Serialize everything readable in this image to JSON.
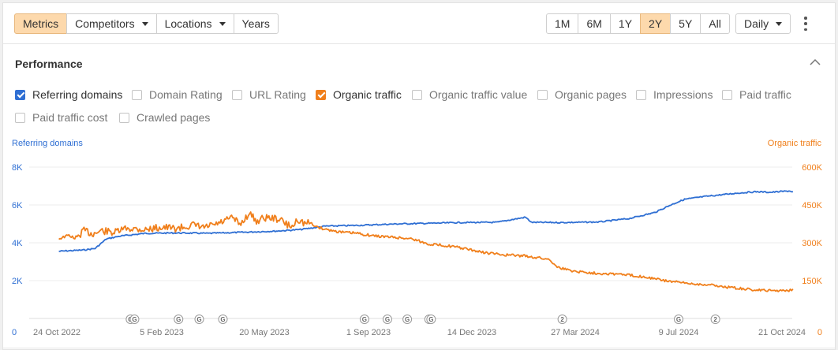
{
  "toolbar": {
    "metrics": "Metrics",
    "competitors": "Competitors",
    "locations": "Locations",
    "years": "Years",
    "ranges": [
      "1M",
      "6M",
      "1Y",
      "2Y",
      "5Y",
      "All"
    ],
    "active_range": "2Y",
    "granularity": "Daily"
  },
  "panel": {
    "title": "Performance",
    "checkboxes": [
      {
        "label": "Referring domains",
        "checked": true,
        "color": "blue"
      },
      {
        "label": "Domain Rating",
        "checked": false
      },
      {
        "label": "URL Rating",
        "checked": false
      },
      {
        "label": "Organic traffic",
        "checked": true,
        "color": "orange"
      },
      {
        "label": "Organic traffic value",
        "checked": false
      },
      {
        "label": "Organic pages",
        "checked": false
      },
      {
        "label": "Impressions",
        "checked": false
      },
      {
        "label": "Paid traffic",
        "checked": false
      },
      {
        "label": "Paid traffic cost",
        "checked": false
      },
      {
        "label": "Crawled pages",
        "checked": false
      }
    ]
  },
  "colors": {
    "referring_domains": "#2f6fd3",
    "organic_traffic": "#f07f1b",
    "active_button": "#fdd9ac",
    "grid": "#ececec"
  },
  "chart_data": {
    "type": "line",
    "left_axis": {
      "label": "Referring domains",
      "ticks": [
        "0",
        "2K",
        "4K",
        "6K",
        "8K"
      ],
      "ylim": [
        0,
        8000
      ]
    },
    "right_axis": {
      "label": "Organic traffic",
      "ticks": [
        "0",
        "150K",
        "300K",
        "450K",
        "600K"
      ],
      "ylim": [
        0,
        600000
      ]
    },
    "x_ticks": [
      "24 Oct 2022",
      "5 Feb 2023",
      "20 May 2023",
      "1 Sep 2023",
      "14 Dec 2023",
      "27 Mar 2024",
      "9 Jul 2024",
      "21 Oct 2024"
    ],
    "x_tick_dates": [
      "2022-10-24",
      "2023-02-05",
      "2023-05-20",
      "2023-09-01",
      "2023-12-14",
      "2024-03-27",
      "2024-07-09",
      "2024-10-21"
    ],
    "grid": true,
    "annotations": [
      {
        "date": "2023-01-05",
        "label": "G"
      },
      {
        "date": "2023-01-09",
        "label": "G"
      },
      {
        "date": "2023-02-22",
        "label": "G"
      },
      {
        "date": "2023-03-15",
        "label": "G"
      },
      {
        "date": "2023-04-08",
        "label": "G"
      },
      {
        "date": "2023-08-28",
        "label": "G"
      },
      {
        "date": "2023-09-20",
        "label": "G"
      },
      {
        "date": "2023-10-10",
        "label": "G"
      },
      {
        "date": "2023-11-01",
        "label": "G"
      },
      {
        "date": "2023-11-03",
        "label": "G"
      },
      {
        "date": "2024-03-14",
        "label": "2"
      },
      {
        "date": "2024-07-09",
        "label": "G"
      },
      {
        "date": "2024-08-15",
        "label": "2"
      }
    ],
    "series": [
      {
        "name": "Referring domains",
        "axis": "left",
        "points": [
          [
            "2022-10-26",
            3550
          ],
          [
            "2022-11-20",
            3620
          ],
          [
            "2022-12-01",
            3700
          ],
          [
            "2022-12-12",
            4200
          ],
          [
            "2022-12-25",
            4350
          ],
          [
            "2023-01-20",
            4500
          ],
          [
            "2023-02-20",
            4520
          ],
          [
            "2023-03-25",
            4500
          ],
          [
            "2023-05-01",
            4560
          ],
          [
            "2023-06-01",
            4620
          ],
          [
            "2023-06-25",
            4700
          ],
          [
            "2023-07-20",
            4880
          ],
          [
            "2023-08-20",
            4920
          ],
          [
            "2023-10-01",
            5000
          ],
          [
            "2023-11-10",
            5040
          ],
          [
            "2023-12-01",
            5070
          ],
          [
            "2024-01-08",
            5080
          ],
          [
            "2024-01-26",
            5250
          ],
          [
            "2024-02-06",
            5350
          ],
          [
            "2024-02-12",
            5080
          ],
          [
            "2024-03-15",
            5070
          ],
          [
            "2024-04-20",
            5100
          ],
          [
            "2024-05-20",
            5280
          ],
          [
            "2024-06-15",
            5600
          ],
          [
            "2024-07-01",
            6000
          ],
          [
            "2024-07-15",
            6300
          ],
          [
            "2024-08-05",
            6450
          ],
          [
            "2024-09-05",
            6620
          ],
          [
            "2024-09-25",
            6700
          ],
          [
            "2024-10-10",
            6670
          ],
          [
            "2024-10-28",
            6740
          ],
          [
            "2024-11-01",
            6700
          ]
        ]
      },
      {
        "name": "Organic traffic",
        "axis": "right",
        "points": [
          [
            "2022-10-26",
            316000
          ],
          [
            "2022-11-05",
            330000
          ],
          [
            "2022-11-12",
            315000
          ],
          [
            "2022-11-20",
            350000
          ],
          [
            "2022-11-28",
            335000
          ],
          [
            "2022-12-08",
            348000
          ],
          [
            "2022-12-20",
            340000
          ],
          [
            "2023-01-01",
            358000
          ],
          [
            "2023-01-20",
            352000
          ],
          [
            "2023-02-05",
            362000
          ],
          [
            "2023-02-20",
            356000
          ],
          [
            "2023-03-08",
            370000
          ],
          [
            "2023-03-20",
            360000
          ],
          [
            "2023-04-05",
            378000
          ],
          [
            "2023-04-18",
            400000
          ],
          [
            "2023-04-25",
            372000
          ],
          [
            "2023-05-05",
            418000
          ],
          [
            "2023-05-12",
            385000
          ],
          [
            "2023-05-20",
            400000
          ],
          [
            "2023-05-28",
            398000
          ],
          [
            "2023-06-05",
            392000
          ],
          [
            "2023-06-12",
            370000
          ],
          [
            "2023-06-18",
            365000
          ],
          [
            "2023-06-22",
            396000
          ],
          [
            "2023-06-28",
            378000
          ],
          [
            "2023-07-05",
            378000
          ],
          [
            "2023-07-12",
            362000
          ],
          [
            "2023-07-22",
            352000
          ],
          [
            "2023-08-05",
            342000
          ],
          [
            "2023-08-20",
            338000
          ],
          [
            "2023-09-05",
            328000
          ],
          [
            "2023-09-25",
            322000
          ],
          [
            "2023-10-15",
            316000
          ],
          [
            "2023-10-30",
            296000
          ],
          [
            "2023-11-20",
            288000
          ],
          [
            "2023-12-05",
            278000
          ],
          [
            "2023-12-25",
            262000
          ],
          [
            "2024-01-15",
            252000
          ],
          [
            "2024-02-05",
            248000
          ],
          [
            "2024-02-20",
            240000
          ],
          [
            "2024-03-01",
            234000
          ],
          [
            "2024-03-10",
            202000
          ],
          [
            "2024-03-25",
            188000
          ],
          [
            "2024-04-15",
            180000
          ],
          [
            "2024-05-10",
            176000
          ],
          [
            "2024-06-05",
            165000
          ],
          [
            "2024-06-25",
            150000
          ],
          [
            "2024-07-15",
            140000
          ],
          [
            "2024-08-10",
            133000
          ],
          [
            "2024-09-01",
            122000
          ],
          [
            "2024-09-20",
            114000
          ],
          [
            "2024-10-10",
            110000
          ],
          [
            "2024-10-28",
            112000
          ],
          [
            "2024-11-01",
            117000
          ]
        ]
      }
    ]
  }
}
